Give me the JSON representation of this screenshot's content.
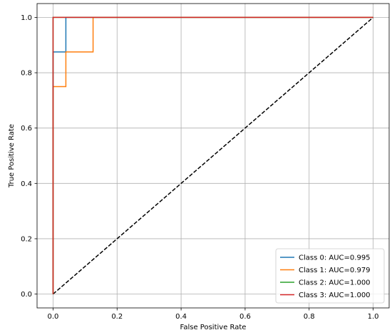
{
  "chart_data": {
    "type": "line",
    "title": "",
    "xlabel": "False Positive Rate",
    "ylabel": "True Positive Rate",
    "xlim": [
      -0.05,
      1.05
    ],
    "ylim": [
      -0.05,
      1.05
    ],
    "x_ticks": [
      0.0,
      0.2,
      0.4,
      0.6,
      0.8,
      1.0
    ],
    "y_ticks": [
      0.0,
      0.2,
      0.4,
      0.6,
      0.8,
      1.0
    ],
    "x_tick_labels": [
      "0.0",
      "0.2",
      "0.4",
      "0.6",
      "0.8",
      "1.0"
    ],
    "y_tick_labels": [
      "0.0",
      "0.2",
      "0.4",
      "0.6",
      "0.8",
      "1.0"
    ],
    "grid": true,
    "legend_position": "lower-right",
    "series": [
      {
        "name": "Class 0: AUC=0.995",
        "color": "#1f77b4",
        "style": "solid",
        "x": [
          0.0,
          0.0,
          0.0,
          0.04,
          0.04,
          1.0
        ],
        "y": [
          0.0,
          0.875,
          0.875,
          0.875,
          1.0,
          1.0
        ]
      },
      {
        "name": "Class 1: AUC=0.979",
        "color": "#ff7f0e",
        "style": "solid",
        "x": [
          0.0,
          0.0,
          0.04,
          0.04,
          0.125,
          0.125,
          1.0
        ],
        "y": [
          0.0,
          0.75,
          0.75,
          0.875,
          0.875,
          1.0,
          1.0
        ]
      },
      {
        "name": "Class 2: AUC=1.000",
        "color": "#2ca02c",
        "style": "solid",
        "x": [
          0.0,
          0.0,
          1.0
        ],
        "y": [
          0.0,
          1.0,
          1.0
        ]
      },
      {
        "name": "Class 3: AUC=1.000",
        "color": "#d62728",
        "style": "solid",
        "x": [
          0.0,
          0.0,
          1.0
        ],
        "y": [
          0.0,
          1.0,
          1.0
        ]
      }
    ],
    "reference_line": {
      "color": "#000000",
      "style": "dashed",
      "x": [
        0.0,
        1.0
      ],
      "y": [
        0.0,
        1.0
      ]
    }
  }
}
